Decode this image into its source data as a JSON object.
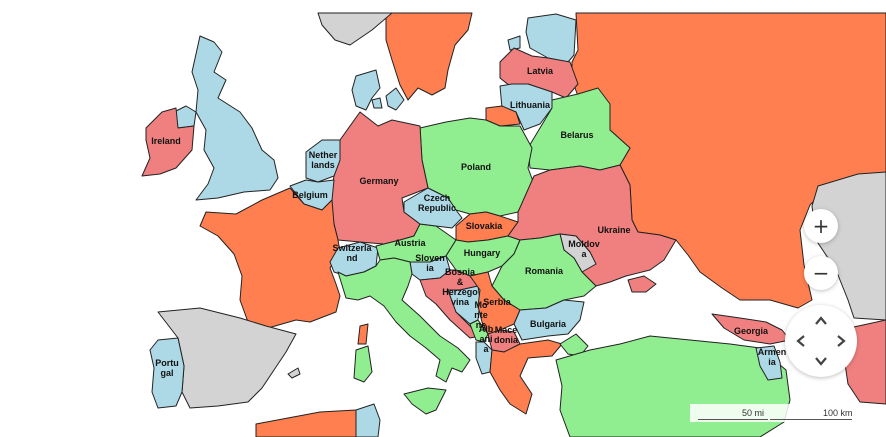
{
  "map": {
    "colors": {
      "orange": "#ff7f50",
      "green": "#90ee90",
      "blue": "#add8e6",
      "red": "#f08080",
      "grey": "#d3d3d3",
      "border": "#222222"
    },
    "countries": [
      {
        "id": "ireland",
        "label": "Ireland",
        "color": "red"
      },
      {
        "id": "united-kingdom",
        "label": "",
        "color": "blue"
      },
      {
        "id": "norway",
        "label": "",
        "color": "orange"
      },
      {
        "id": "sweden",
        "label": "",
        "color": "grey"
      },
      {
        "id": "finland",
        "label": "",
        "color": "blue"
      },
      {
        "id": "russia",
        "label": "",
        "color": "orange"
      },
      {
        "id": "estonia",
        "label": "",
        "color": "blue"
      },
      {
        "id": "latvia",
        "label": "Latvia",
        "color": "red"
      },
      {
        "id": "lithuania",
        "label": "Lithuania",
        "color": "blue"
      },
      {
        "id": "belarus",
        "label": "Belarus",
        "color": "green"
      },
      {
        "id": "poland",
        "label": "Poland",
        "color": "green"
      },
      {
        "id": "germany",
        "label": "Germany",
        "color": "red"
      },
      {
        "id": "netherlands",
        "label": "Nether lands",
        "color": "blue"
      },
      {
        "id": "belgium",
        "label": "Belgium",
        "color": "blue"
      },
      {
        "id": "france",
        "label": "",
        "color": "orange"
      },
      {
        "id": "spain",
        "label": "",
        "color": "grey"
      },
      {
        "id": "portugal",
        "label": "Portu gal",
        "color": "blue"
      },
      {
        "id": "czech-republic",
        "label": "Czech Republic",
        "color": "blue"
      },
      {
        "id": "slovakia",
        "label": "Slovakia",
        "color": "orange"
      },
      {
        "id": "ukraine",
        "label": "Ukraine",
        "color": "red"
      },
      {
        "id": "moldova",
        "label": "Moldov a",
        "color": "grey"
      },
      {
        "id": "austria",
        "label": "Austria",
        "color": "green"
      },
      {
        "id": "switzerland",
        "label": "Switzerla nd",
        "color": "blue"
      },
      {
        "id": "hungary",
        "label": "Hungary",
        "color": "green"
      },
      {
        "id": "romania",
        "label": "Romania",
        "color": "green"
      },
      {
        "id": "slovenia",
        "label": "Sloven ia",
        "color": "blue"
      },
      {
        "id": "croatia",
        "label": "",
        "color": "red"
      },
      {
        "id": "bosnia",
        "label": "Bosnia & Herzego vina",
        "color": "blue"
      },
      {
        "id": "serbia",
        "label": "Serbia",
        "color": "orange"
      },
      {
        "id": "montenegro",
        "label": "Mo nte ne",
        "color": "green"
      },
      {
        "id": "albania",
        "label": "Alb ani a",
        "color": "blue"
      },
      {
        "id": "macedonia",
        "label": "Mace donia",
        "color": "red"
      },
      {
        "id": "bulgaria",
        "label": "Bulgaria",
        "color": "blue"
      },
      {
        "id": "italy",
        "label": "",
        "color": "green"
      },
      {
        "id": "greece",
        "label": "",
        "color": "orange"
      },
      {
        "id": "turkey",
        "label": "",
        "color": "green"
      },
      {
        "id": "georgia",
        "label": "Georgia",
        "color": "red"
      },
      {
        "id": "armenia",
        "label": "Armen ia",
        "color": "blue"
      },
      {
        "id": "denmark",
        "label": "",
        "color": "blue"
      },
      {
        "id": "sardinia",
        "label": "",
        "color": "green"
      },
      {
        "id": "corsica",
        "label": "",
        "color": "orange"
      },
      {
        "id": "crimea",
        "label": "",
        "color": "red"
      },
      {
        "id": "azerbaijan",
        "label": "",
        "color": "red"
      }
    ]
  },
  "controls": {
    "zoom_in": "+",
    "zoom_out": "−"
  },
  "scale": {
    "miles": "50 mi",
    "km": "100 km"
  }
}
